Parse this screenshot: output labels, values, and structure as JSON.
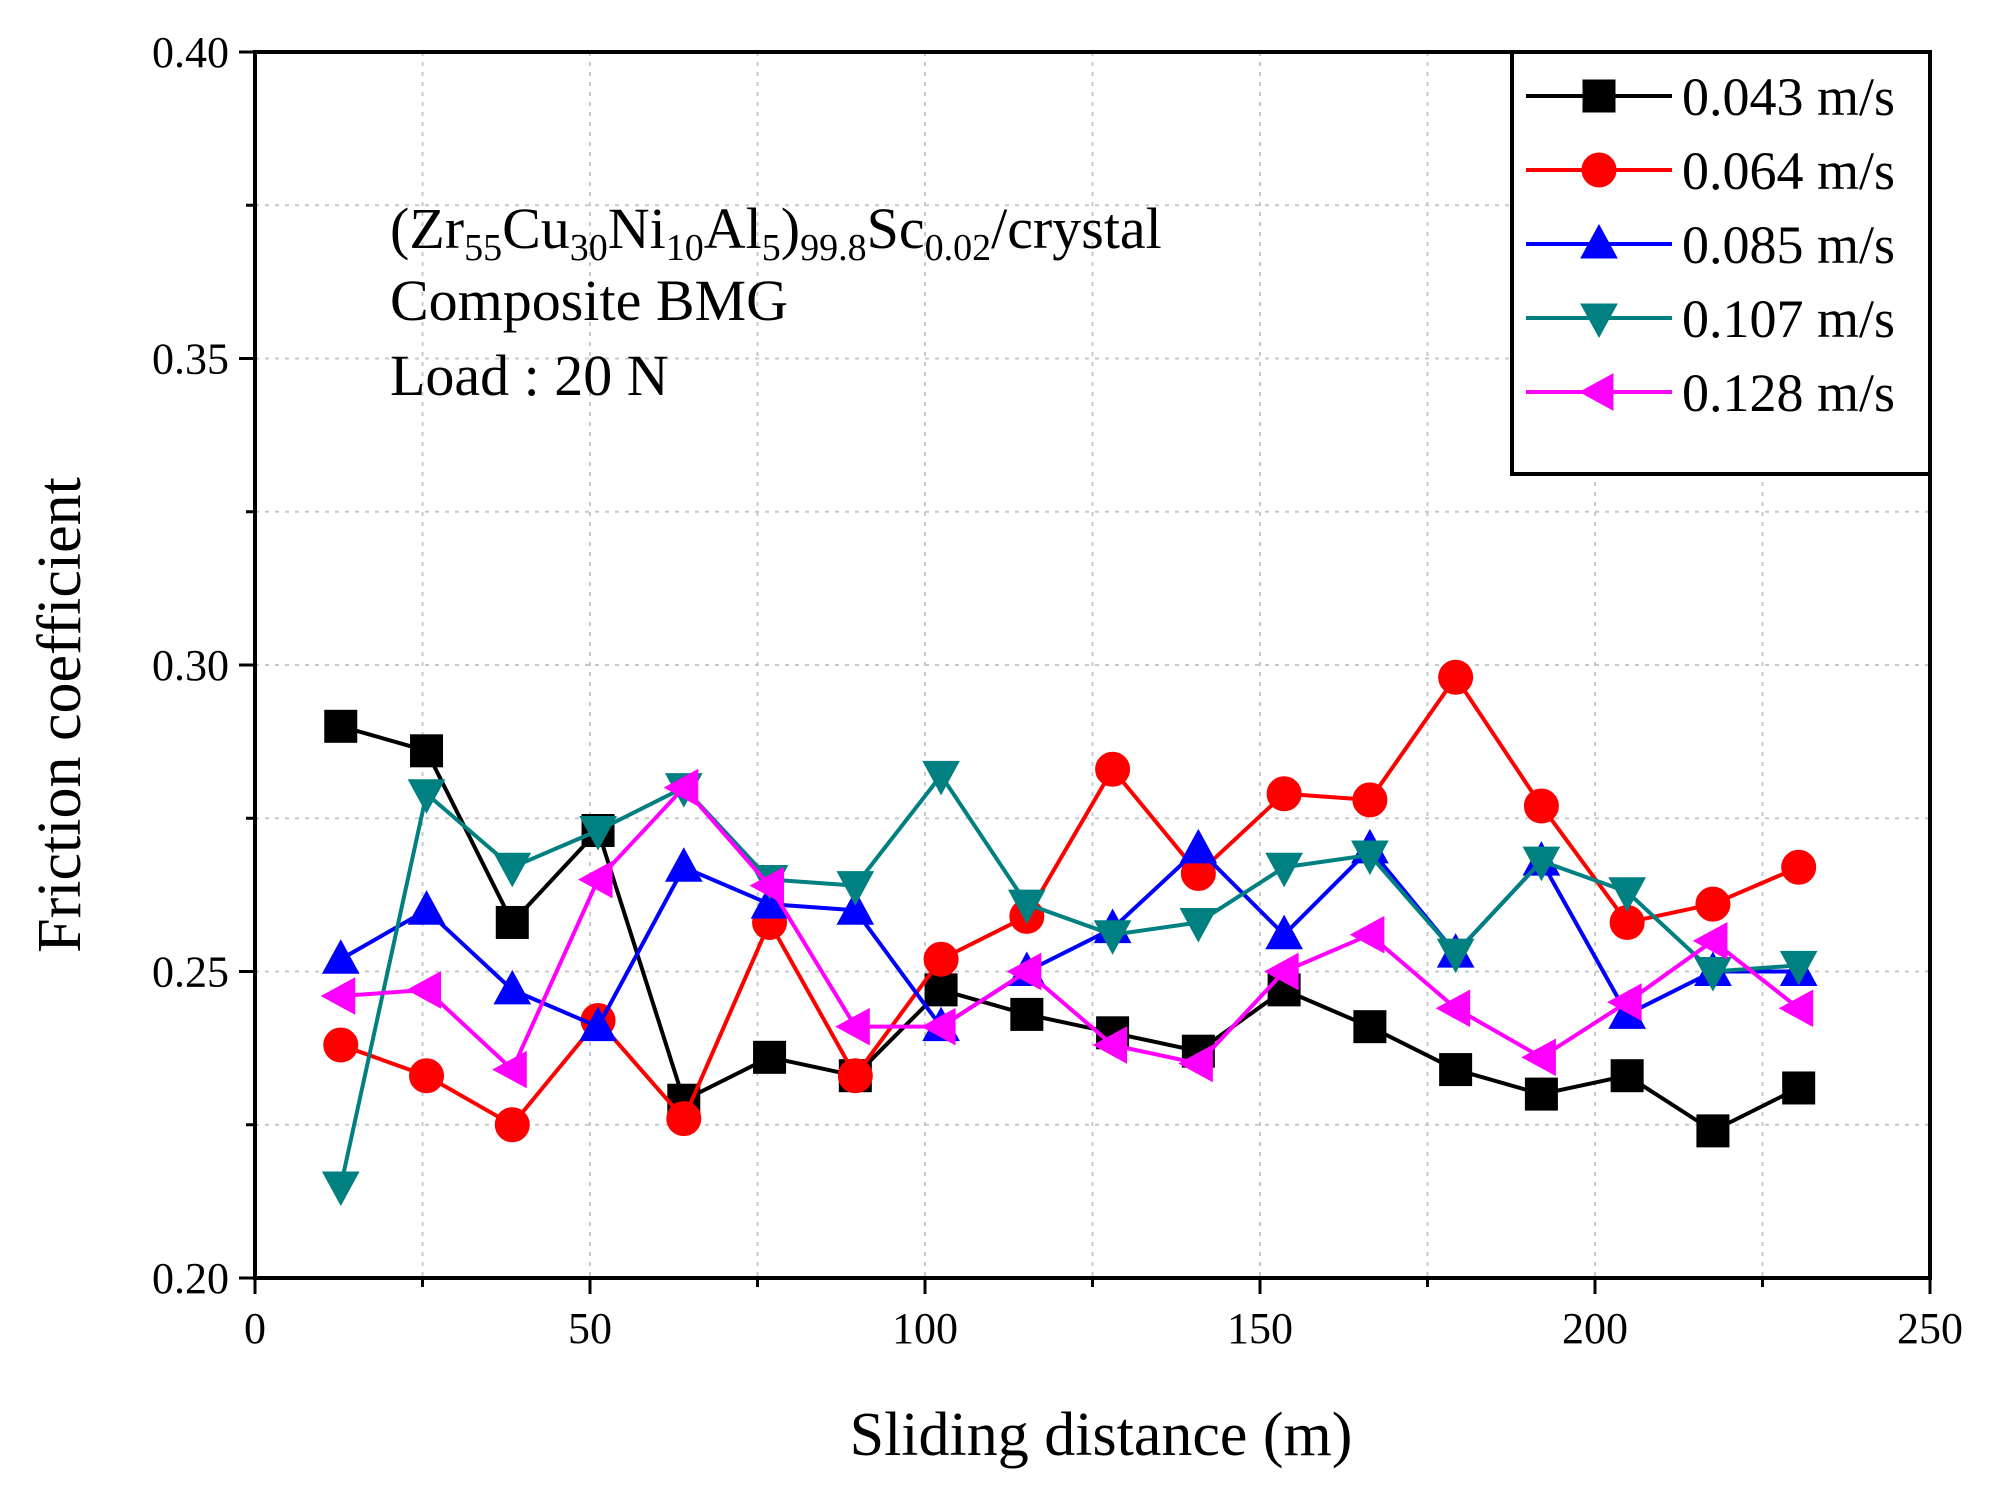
{
  "chart_data": {
    "type": "line",
    "title": "",
    "xlabel": "Sliding distance (m)",
    "ylabel": "Friction coefficient",
    "xlim": [
      0,
      250
    ],
    "ylim": [
      0.2,
      0.4
    ],
    "xticks": [
      "0",
      "50",
      "100",
      "150",
      "200",
      "250"
    ],
    "yticks": [
      "0.20",
      "0.25",
      "0.30",
      "0.35",
      "0.40"
    ],
    "grid": true,
    "legend_position": "top-right",
    "annotation": {
      "formula": {
        "open": "(Zr",
        "s1": "55",
        "t1": "Cu",
        "s2": "30",
        "t2": "Ni",
        "s3": "10",
        "t3": "Al",
        "s4": "5",
        "t4": ")",
        "s5": "99.8",
        "t5": "Sc",
        "s6": "0.02",
        "t6": "/crystal"
      },
      "line2": "Composite BMG",
      "line3": "Load : 20 N"
    },
    "x": [
      12.8,
      25.6,
      38.4,
      51.2,
      64.0,
      76.8,
      89.6,
      102.4,
      115.2,
      128.0,
      140.8,
      153.6,
      166.4,
      179.2,
      192.0,
      204.8,
      217.6,
      230.4
    ],
    "series": [
      {
        "name": "0.043 m/s",
        "color": "#000000",
        "marker": "square",
        "values": [
          0.29,
          0.286,
          0.258,
          0.273,
          0.229,
          0.236,
          0.233,
          0.247,
          0.243,
          0.24,
          0.237,
          0.247,
          0.241,
          0.234,
          0.23,
          0.233,
          0.224,
          0.231
        ]
      },
      {
        "name": "0.064 m/s",
        "color": "#ff0000",
        "marker": "circle",
        "values": [
          0.238,
          0.233,
          0.225,
          0.242,
          0.226,
          0.258,
          0.233,
          0.252,
          0.259,
          0.283,
          0.266,
          0.279,
          0.278,
          0.298,
          0.277,
          0.258,
          0.261,
          0.267
        ]
      },
      {
        "name": "0.085 m/s",
        "color": "#0000ff",
        "marker": "triangle-up",
        "values": [
          0.252,
          0.26,
          0.247,
          0.241,
          0.267,
          0.261,
          0.26,
          0.241,
          0.25,
          0.257,
          0.27,
          0.256,
          0.27,
          0.253,
          0.268,
          0.243,
          0.25,
          0.25
        ]
      },
      {
        "name": "0.107 m/s",
        "color": "#008080",
        "marker": "triangle-down",
        "values": [
          0.215,
          0.279,
          0.267,
          0.273,
          0.28,
          0.265,
          0.264,
          0.282,
          0.261,
          0.256,
          0.258,
          0.267,
          0.269,
          0.253,
          0.268,
          0.263,
          0.25,
          0.251
        ]
      },
      {
        "name": "0.128 m/s",
        "color": "#ff00ff",
        "marker": "triangle-left",
        "values": [
          0.246,
          0.247,
          0.234,
          0.265,
          0.28,
          0.264,
          0.241,
          0.241,
          0.25,
          0.238,
          0.235,
          0.25,
          0.256,
          0.244,
          0.236,
          0.245,
          0.255,
          0.244
        ]
      }
    ]
  }
}
